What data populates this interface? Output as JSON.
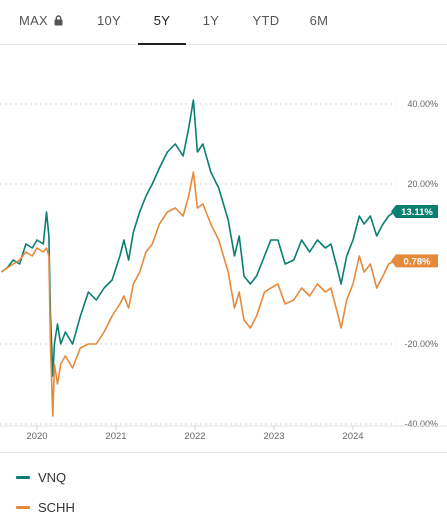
{
  "tabs": [
    {
      "label": "MAX",
      "locked": true
    },
    {
      "label": "10Y"
    },
    {
      "label": "5Y",
      "active": true
    },
    {
      "label": "1Y"
    },
    {
      "label": "YTD"
    },
    {
      "label": "6M"
    }
  ],
  "chart_data": {
    "type": "line",
    "x_labels": [
      "2020",
      "2021",
      "2022",
      "2023",
      "2024"
    ],
    "y_ticks": [
      "40.00%",
      "20.00%",
      "-20.00%",
      "-40.00%"
    ],
    "ylim": [
      -40,
      40
    ],
    "grid": "horizontal dashed",
    "series": [
      {
        "name": "VNQ",
        "color": "#0a7f71",
        "end_label": "13.11%",
        "points": [
          [
            2019.55,
            -2
          ],
          [
            2019.62,
            -1
          ],
          [
            2019.7,
            1
          ],
          [
            2019.78,
            0
          ],
          [
            2019.86,
            5
          ],
          [
            2019.94,
            4
          ],
          [
            2020.0,
            6
          ],
          [
            2020.08,
            5
          ],
          [
            2020.12,
            13
          ],
          [
            2020.15,
            7
          ],
          [
            2020.17,
            -12
          ],
          [
            2020.2,
            -28
          ],
          [
            2020.22,
            -20
          ],
          [
            2020.26,
            -15
          ],
          [
            2020.3,
            -20
          ],
          [
            2020.36,
            -17
          ],
          [
            2020.45,
            -20
          ],
          [
            2020.55,
            -13
          ],
          [
            2020.65,
            -7
          ],
          [
            2020.75,
            -9
          ],
          [
            2020.85,
            -6
          ],
          [
            2020.95,
            -4
          ],
          [
            2021.05,
            2
          ],
          [
            2021.1,
            6
          ],
          [
            2021.16,
            1
          ],
          [
            2021.22,
            8
          ],
          [
            2021.3,
            13
          ],
          [
            2021.38,
            17
          ],
          [
            2021.46,
            20
          ],
          [
            2021.55,
            24
          ],
          [
            2021.65,
            28
          ],
          [
            2021.75,
            30
          ],
          [
            2021.85,
            27
          ],
          [
            2021.92,
            34
          ],
          [
            2021.98,
            41
          ],
          [
            2022.03,
            28
          ],
          [
            2022.1,
            30
          ],
          [
            2022.2,
            23
          ],
          [
            2022.3,
            19
          ],
          [
            2022.42,
            11
          ],
          [
            2022.5,
            2
          ],
          [
            2022.56,
            7
          ],
          [
            2022.62,
            -3
          ],
          [
            2022.7,
            -5
          ],
          [
            2022.78,
            -3
          ],
          [
            2022.88,
            2
          ],
          [
            2022.96,
            6
          ],
          [
            2023.05,
            6
          ],
          [
            2023.14,
            0
          ],
          [
            2023.25,
            1
          ],
          [
            2023.35,
            6
          ],
          [
            2023.45,
            3
          ],
          [
            2023.55,
            6
          ],
          [
            2023.65,
            4
          ],
          [
            2023.72,
            5
          ],
          [
            2023.8,
            -1
          ],
          [
            2023.85,
            -5
          ],
          [
            2023.92,
            2
          ],
          [
            2024.0,
            6
          ],
          [
            2024.08,
            12
          ],
          [
            2024.14,
            10
          ],
          [
            2024.22,
            12
          ],
          [
            2024.3,
            7
          ],
          [
            2024.38,
            10
          ],
          [
            2024.45,
            12
          ],
          [
            2024.52,
            13.11
          ]
        ]
      },
      {
        "name": "SCHH",
        "color": "#e58a3b",
        "end_label": "0.78%",
        "points": [
          [
            2019.55,
            -2
          ],
          [
            2019.62,
            -1
          ],
          [
            2019.7,
            0
          ],
          [
            2019.78,
            1
          ],
          [
            2019.86,
            3
          ],
          [
            2019.94,
            2
          ],
          [
            2020.0,
            4
          ],
          [
            2020.08,
            3
          ],
          [
            2020.12,
            4
          ],
          [
            2020.15,
            2
          ],
          [
            2020.17,
            -20
          ],
          [
            2020.2,
            -38
          ],
          [
            2020.22,
            -25
          ],
          [
            2020.26,
            -30
          ],
          [
            2020.3,
            -25
          ],
          [
            2020.36,
            -23
          ],
          [
            2020.45,
            -26
          ],
          [
            2020.55,
            -21
          ],
          [
            2020.65,
            -20
          ],
          [
            2020.75,
            -20
          ],
          [
            2020.85,
            -17
          ],
          [
            2020.95,
            -13
          ],
          [
            2021.05,
            -10
          ],
          [
            2021.1,
            -8
          ],
          [
            2021.16,
            -11
          ],
          [
            2021.22,
            -5
          ],
          [
            2021.3,
            -2
          ],
          [
            2021.38,
            3
          ],
          [
            2021.46,
            5
          ],
          [
            2021.55,
            10
          ],
          [
            2021.65,
            13
          ],
          [
            2021.75,
            14
          ],
          [
            2021.85,
            12
          ],
          [
            2021.92,
            17
          ],
          [
            2021.98,
            23
          ],
          [
            2022.03,
            14
          ],
          [
            2022.1,
            15
          ],
          [
            2022.2,
            10
          ],
          [
            2022.3,
            6
          ],
          [
            2022.42,
            -2
          ],
          [
            2022.5,
            -11
          ],
          [
            2022.56,
            -7
          ],
          [
            2022.62,
            -14
          ],
          [
            2022.7,
            -16
          ],
          [
            2022.78,
            -13
          ],
          [
            2022.88,
            -7
          ],
          [
            2022.96,
            -6
          ],
          [
            2023.05,
            -5
          ],
          [
            2023.14,
            -10
          ],
          [
            2023.25,
            -9
          ],
          [
            2023.35,
            -6
          ],
          [
            2023.45,
            -8
          ],
          [
            2023.55,
            -5
          ],
          [
            2023.65,
            -7
          ],
          [
            2023.72,
            -6
          ],
          [
            2023.8,
            -12
          ],
          [
            2023.85,
            -16
          ],
          [
            2023.92,
            -9
          ],
          [
            2024.0,
            -5
          ],
          [
            2024.08,
            2
          ],
          [
            2024.14,
            -2
          ],
          [
            2024.22,
            0
          ],
          [
            2024.3,
            -6
          ],
          [
            2024.38,
            -3
          ],
          [
            2024.45,
            0
          ],
          [
            2024.52,
            0.78
          ]
        ]
      }
    ]
  }
}
